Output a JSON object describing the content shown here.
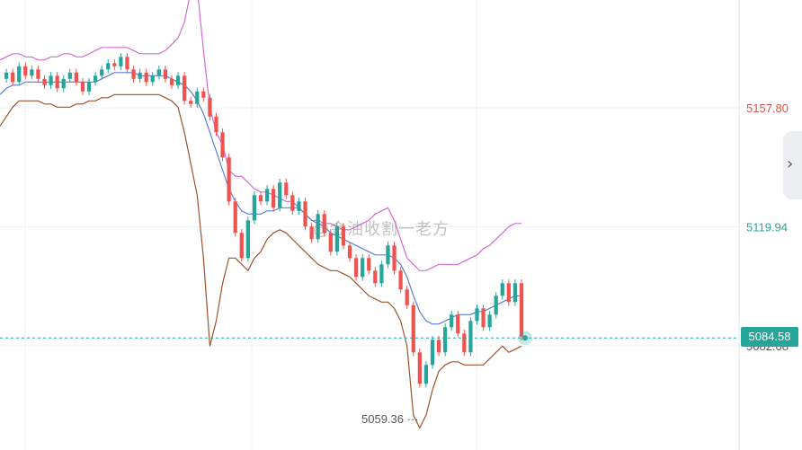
{
  "chart_data": {
    "type": "candlestick",
    "y_ticks": [
      "5157.80",
      "5119.94",
      "5082.08"
    ],
    "price_scale": {
      "lower_price": 5082.08,
      "upper_price": 5157.8
    },
    "current_price": "5084.58",
    "low_marker": "5059.36",
    "watermark": "@金油收割一老方",
    "colors": {
      "up": "#26a69a",
      "down": "#ef5350",
      "ma": "#5b7fd6",
      "upper_band": "#d36ad6",
      "lower_band": "#a0522d",
      "grid": "#eef0f3"
    },
    "grid": true,
    "close": [
      5167,
      5169,
      5166,
      5171,
      5168,
      5170,
      5167,
      5165,
      5168,
      5164,
      5167,
      5169,
      5166,
      5163,
      5166,
      5168,
      5170,
      5172,
      5171,
      5174,
      5170,
      5167,
      5169,
      5166,
      5168,
      5170,
      5167,
      5165,
      5168,
      5160,
      5159,
      5163,
      5161,
      5155,
      5150,
      5142,
      5128,
      5118,
      5110,
      5122,
      5130,
      5128,
      5132,
      5126,
      5134,
      5130,
      5125,
      5128,
      5120,
      5116,
      5124,
      5118,
      5112,
      5120,
      5114,
      5110,
      5104,
      5110,
      5106,
      5102,
      5108,
      5114,
      5106,
      5100,
      5095,
      5080,
      5070,
      5076,
      5084,
      5080,
      5088,
      5092,
      5086,
      5080,
      5090,
      5094,
      5088,
      5092,
      5098,
      5102,
      5096,
      5102,
      5085
    ],
    "upper_band": [
      5173,
      5174,
      5175,
      5175,
      5174,
      5174,
      5173,
      5173,
      5174,
      5174,
      5175,
      5175,
      5174,
      5174,
      5175,
      5176,
      5177,
      5177,
      5177,
      5177,
      5177,
      5176,
      5175,
      5175,
      5175,
      5175,
      5176,
      5178,
      5180,
      5185,
      5195,
      5196,
      5176,
      5158,
      5150,
      5146,
      5138,
      5136,
      5136,
      5134,
      5132,
      5131,
      5131,
      5130,
      5129,
      5128,
      5128,
      5126,
      5124,
      5122,
      5122,
      5121,
      5121,
      5120,
      5119,
      5119,
      5120,
      5121,
      5122,
      5124,
      5125,
      5126,
      5122,
      5116,
      5110,
      5108,
      5106,
      5106,
      5107,
      5108,
      5108,
      5108,
      5108,
      5109,
      5110,
      5111,
      5113,
      5114,
      5116,
      5118,
      5120,
      5121,
      5121
    ],
    "ma": [
      5162,
      5164,
      5165,
      5165,
      5166,
      5166,
      5166,
      5166,
      5166,
      5166,
      5166,
      5166,
      5166,
      5166,
      5166,
      5166,
      5167,
      5168,
      5169,
      5169,
      5169,
      5169,
      5168,
      5168,
      5168,
      5168,
      5168,
      5167,
      5166,
      5165,
      5163,
      5160,
      5156,
      5150,
      5144,
      5138,
      5132,
      5128,
      5125,
      5124,
      5124,
      5124,
      5125,
      5125,
      5126,
      5126,
      5126,
      5126,
      5124,
      5122,
      5121,
      5120,
      5118,
      5117,
      5116,
      5115,
      5114,
      5113,
      5112,
      5111,
      5111,
      5111,
      5110,
      5108,
      5104,
      5098,
      5093,
      5090,
      5089,
      5089,
      5090,
      5091,
      5092,
      5092,
      5092,
      5093,
      5093,
      5094,
      5095,
      5096,
      5097,
      5098,
      5098
    ],
    "lower_band": [
      5152,
      5155,
      5158,
      5160,
      5160,
      5160,
      5160,
      5159,
      5159,
      5158,
      5158,
      5158,
      5159,
      5159,
      5160,
      5160,
      5161,
      5161,
      5162,
      5162,
      5162,
      5162,
      5162,
      5162,
      5162,
      5162,
      5161,
      5160,
      5158,
      5150,
      5140,
      5130,
      5110,
      5082,
      5090,
      5102,
      5110,
      5110,
      5108,
      5106,
      5110,
      5112,
      5116,
      5118,
      5119,
      5118,
      5116,
      5114,
      5112,
      5110,
      5108,
      5107,
      5106,
      5106,
      5105,
      5104,
      5102,
      5100,
      5098,
      5097,
      5096,
      5096,
      5094,
      5090,
      5082,
      5060,
      5056,
      5060,
      5068,
      5074,
      5076,
      5077,
      5077,
      5076,
      5076,
      5076,
      5076,
      5078,
      5080,
      5082,
      5080,
      5081,
      5082
    ]
  }
}
